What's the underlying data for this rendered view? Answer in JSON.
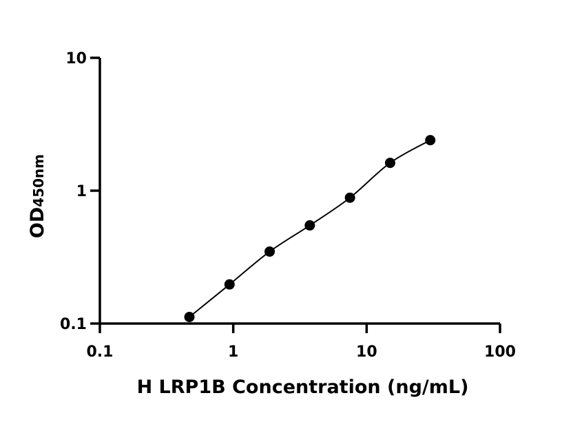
{
  "chart_data": {
    "type": "scatter",
    "title": "",
    "xlabel": "H LRP1B Concentration (ng/mL)",
    "ylabel_main": "OD",
    "ylabel_subscript": "450nm",
    "x_scale": "log",
    "y_scale": "log",
    "xlim": [
      0.1,
      100
    ],
    "ylim": [
      0.1,
      10
    ],
    "x_ticks": [
      0.1,
      1,
      10,
      100
    ],
    "x_tick_labels": [
      "0.1",
      "1",
      "10",
      "100"
    ],
    "y_ticks": [
      0.1,
      1,
      10
    ],
    "y_tick_labels": [
      "0.1",
      "1",
      "10"
    ],
    "grid": false,
    "legend": "none",
    "series": [
      {
        "x": [
          0.469,
          0.938,
          1.875,
          3.75,
          7.5,
          15,
          30
        ],
        "y": [
          0.112,
          0.197,
          0.348,
          0.548,
          0.885,
          1.62,
          2.4
        ],
        "color": "#000000",
        "marker": "circle",
        "fit_curve": true
      }
    ]
  }
}
